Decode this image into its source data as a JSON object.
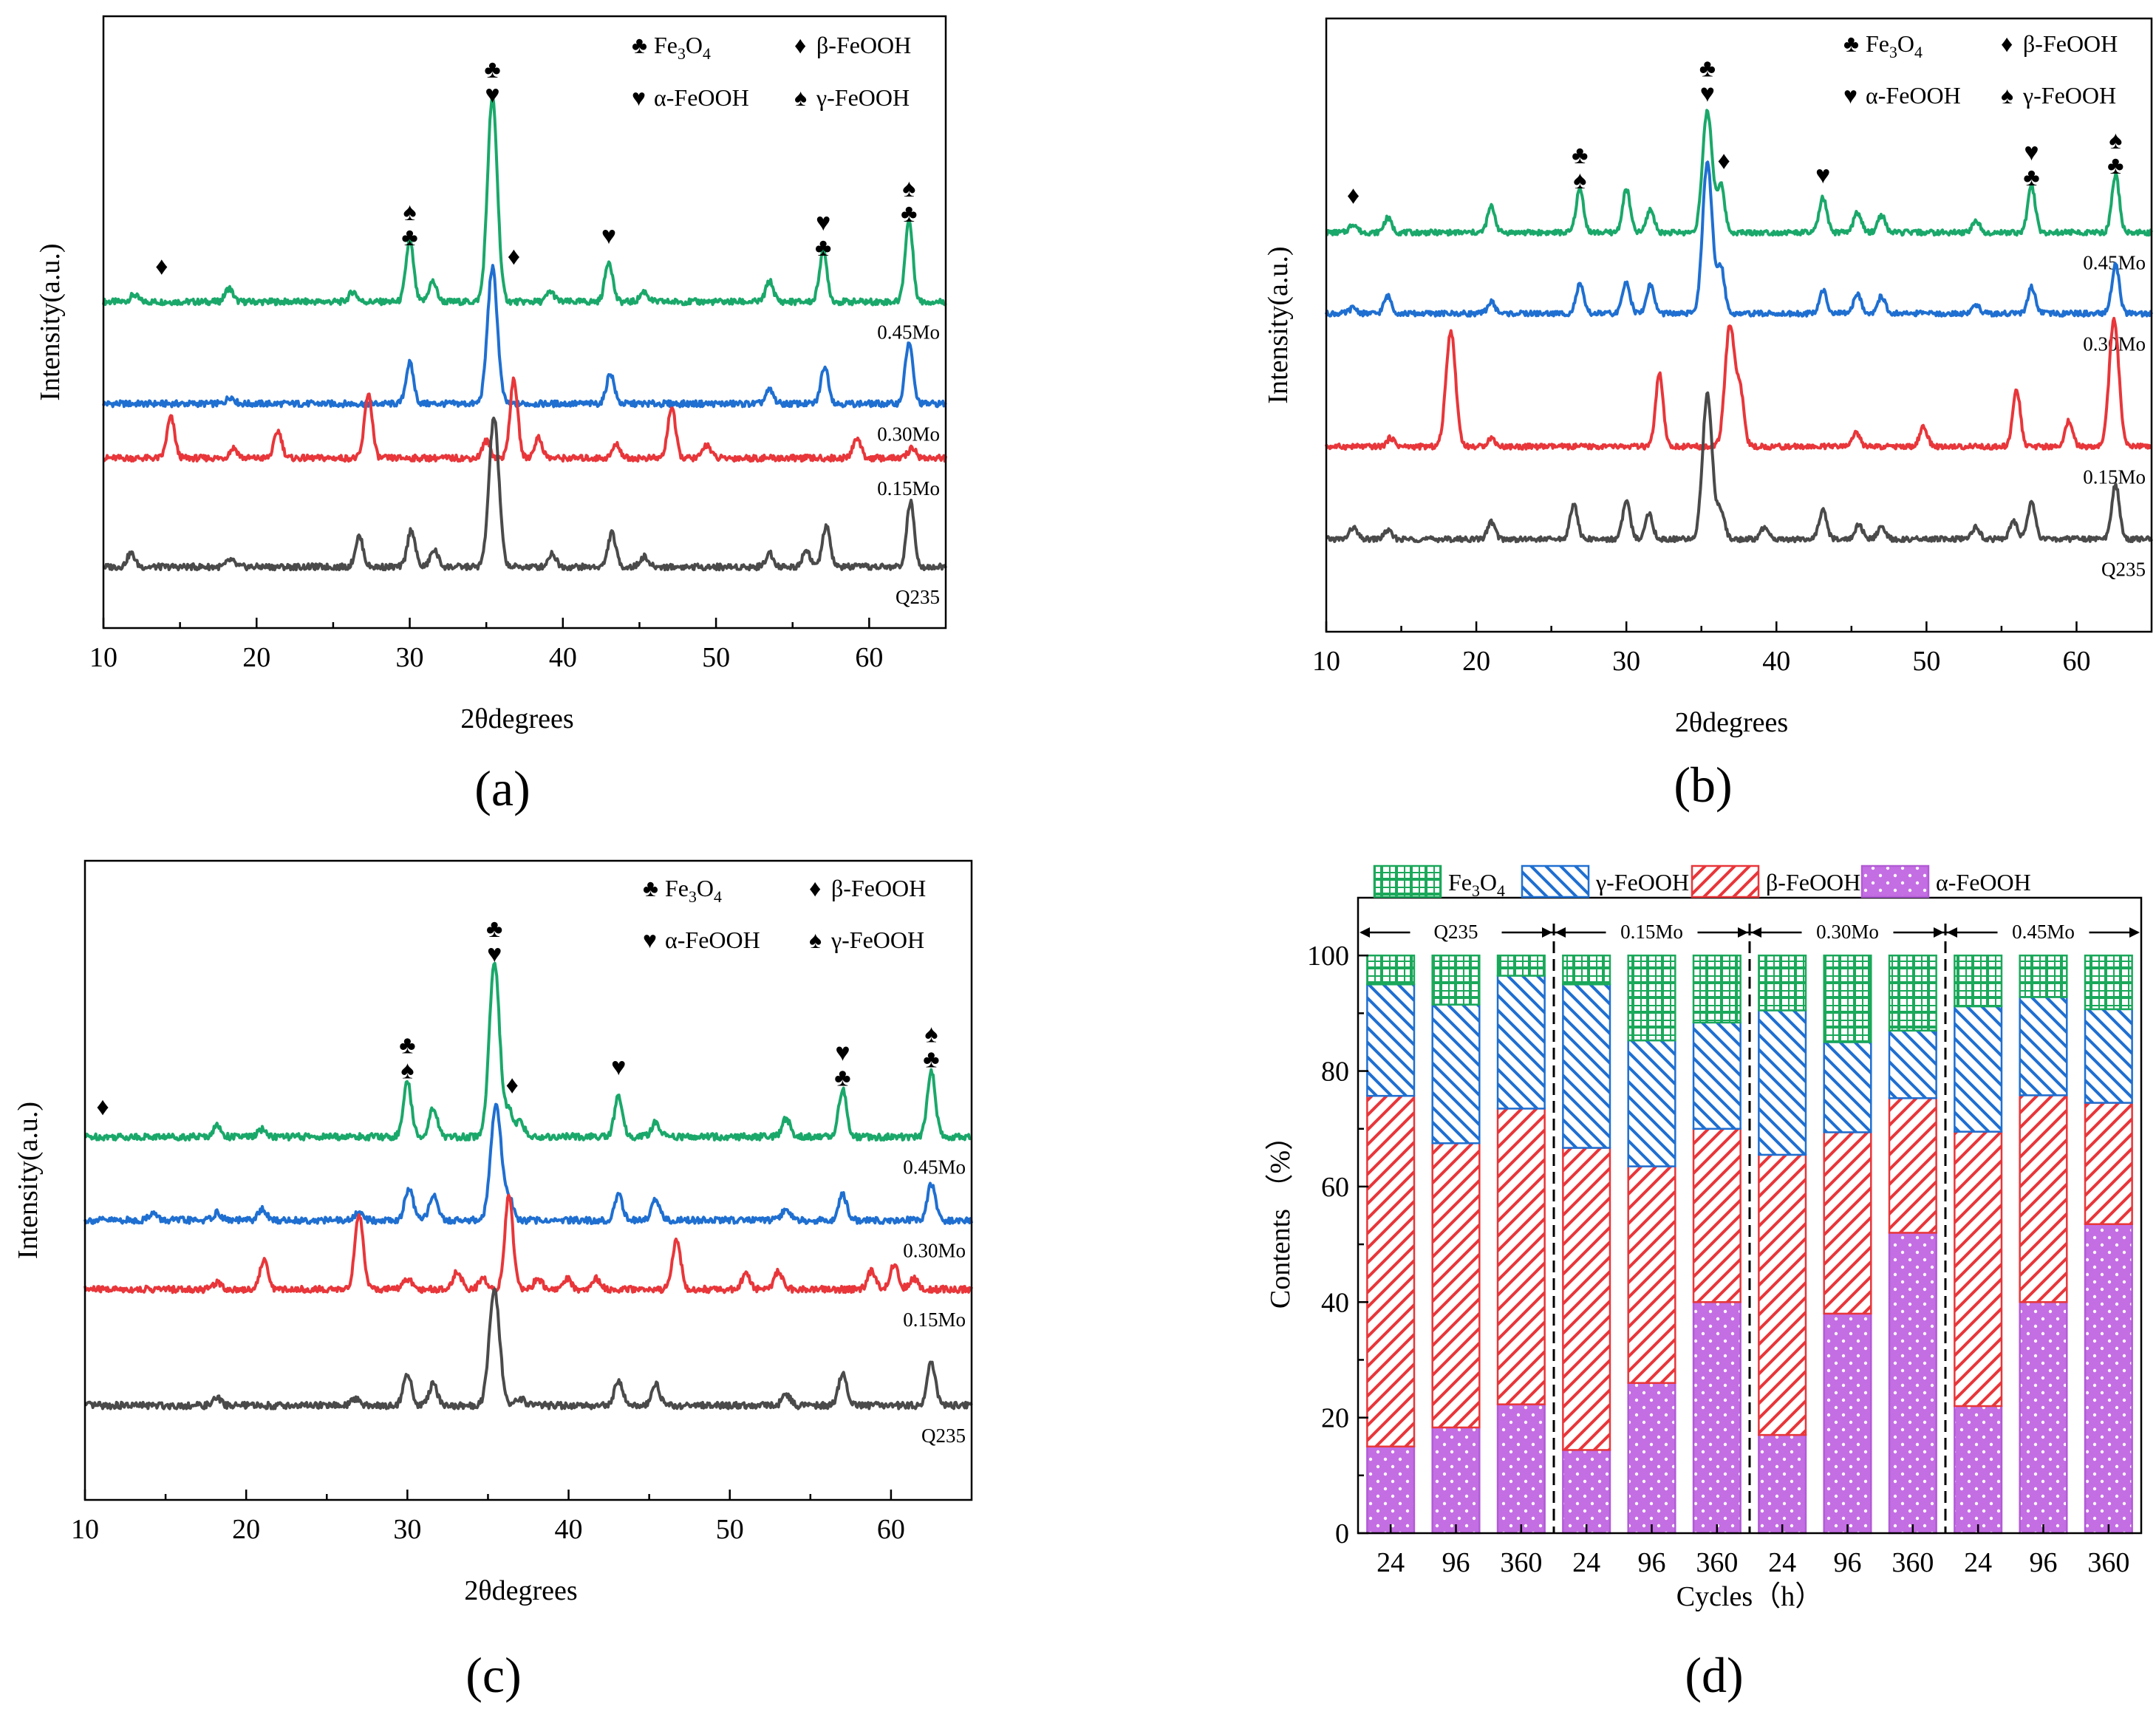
{
  "figure": {
    "panel_labels": [
      "(a)",
      "(b)",
      "(c)",
      "(d)"
    ]
  },
  "legend": {
    "symbols": {
      "Fe3O4": "♣",
      "beta-FeOOH": "♦",
      "alpha-FeOOH": "♥",
      "gamma-FeOOH": "♠"
    },
    "xrd_entries": [
      {
        "sym": "♣",
        "label": "Fe3O4"
      },
      {
        "sym": "♦",
        "label": "β-FeOOH"
      },
      {
        "sym": "♥",
        "label": "α-FeOOH"
      },
      {
        "sym": "♠",
        "label": "γ-FeOOH"
      }
    ],
    "bar_entries": [
      {
        "label": "Fe3O4",
        "color": "#1aa85a"
      },
      {
        "label": "γ-FeOOH",
        "color": "#1f6fd1"
      },
      {
        "label": "β-FeOOH",
        "color": "#e8363a"
      },
      {
        "label": "α-FeOOH",
        "color": "#b25bd6"
      }
    ]
  },
  "chart_data": [
    {
      "type": "line",
      "panel": "(a)",
      "xlabel": "2θdegrees",
      "ylabel": "Intensity(a.u.)",
      "xlim": [
        10,
        65
      ],
      "xticks": [
        10,
        20,
        30,
        40,
        50,
        60
      ],
      "series": [
        {
          "name": "0.45Mo",
          "color": "#1aa86a",
          "baseline": 3.9,
          "peaks": [
            [
              12,
              0.1
            ],
            [
              18.2,
              0.2
            ],
            [
              26.3,
              0.15
            ],
            [
              30,
              0.9
            ],
            [
              31.5,
              0.3
            ],
            [
              35.4,
              3.0
            ],
            [
              39.2,
              0.15
            ],
            [
              43,
              0.6
            ],
            [
              45.3,
              0.15
            ],
            [
              53.5,
              0.3
            ],
            [
              57,
              0.75
            ],
            [
              62.6,
              1.2
            ]
          ]
        },
        {
          "name": "0.30Mo",
          "color": "#1f6fd1",
          "baseline": 2.4,
          "peaks": [
            [
              18.3,
              0.1
            ],
            [
              30,
              0.6
            ],
            [
              35.4,
              2.0
            ],
            [
              43.1,
              0.45
            ],
            [
              53.5,
              0.2
            ],
            [
              57.1,
              0.55
            ],
            [
              62.6,
              0.9
            ]
          ]
        },
        {
          "name": "0.15Mo",
          "color": "#e8363a",
          "baseline": 1.6,
          "peaks": [
            [
              14.4,
              0.6
            ],
            [
              18.5,
              0.15
            ],
            [
              21.4,
              0.4
            ],
            [
              27.3,
              0.95
            ],
            [
              35,
              0.25
            ],
            [
              36.8,
              1.15
            ],
            [
              38.4,
              0.3
            ],
            [
              43.5,
              0.2
            ],
            [
              47.1,
              0.75
            ],
            [
              49.4,
              0.2
            ],
            [
              59.2,
              0.3
            ],
            [
              62.8,
              0.15
            ]
          ]
        },
        {
          "name": "Q235",
          "color": "#4a4a4a",
          "baseline": 0.0,
          "peaks": [
            [
              11.8,
              0.2
            ],
            [
              18.3,
              0.1
            ],
            [
              26.7,
              0.45
            ],
            [
              30.1,
              0.55
            ],
            [
              31.6,
              0.25
            ],
            [
              35.5,
              2.2
            ],
            [
              39.3,
              0.2
            ],
            [
              43.2,
              0.5
            ],
            [
              45.3,
              0.15
            ],
            [
              53.5,
              0.2
            ],
            [
              55.9,
              0.25
            ],
            [
              57.2,
              0.6
            ],
            [
              62.7,
              0.95
            ]
          ]
        }
      ],
      "annotations": [
        {
          "x": 13.8,
          "y": 4.3,
          "label": "♦"
        },
        {
          "x": 30,
          "y": 5.1,
          "label": "♠♣"
        },
        {
          "x": 35.4,
          "y": 7.2,
          "label": "♣♥"
        },
        {
          "x": 36.8,
          "y": 4.45,
          "label": "♦"
        },
        {
          "x": 43,
          "y": 4.75,
          "label": "♥"
        },
        {
          "x": 57,
          "y": 4.95,
          "label": "♥♣"
        },
        {
          "x": 62.6,
          "y": 5.45,
          "label": "♠♣"
        }
      ]
    },
    {
      "type": "line",
      "panel": "(b)",
      "xlabel": "2θdegrees",
      "ylabel": "Intensity(a.u.)",
      "xlim": [
        10,
        65
      ],
      "xticks": [
        10,
        20,
        30,
        40,
        50,
        60
      ],
      "series": [
        {
          "name": "0.45Mo",
          "color": "#1aa86a",
          "baseline": 5.3,
          "peaks": [
            [
              11.8,
              0.15
            ],
            [
              14.1,
              0.25
            ],
            [
              21,
              0.45
            ],
            [
              26.9,
              0.75
            ],
            [
              30,
              0.75
            ],
            [
              31.6,
              0.4
            ],
            [
              35.4,
              2.1
            ],
            [
              36.3,
              0.8
            ],
            [
              43.1,
              0.6
            ],
            [
              45.4,
              0.35
            ],
            [
              47,
              0.3
            ],
            [
              53.3,
              0.2
            ],
            [
              57,
              0.8
            ],
            [
              62.6,
              1.0
            ]
          ]
        },
        {
          "name": "0.30Mo",
          "color": "#1f6fd1",
          "baseline": 3.9,
          "peaks": [
            [
              11.8,
              0.1
            ],
            [
              14.1,
              0.3
            ],
            [
              21,
              0.2
            ],
            [
              26.9,
              0.5
            ],
            [
              30,
              0.55
            ],
            [
              31.6,
              0.5
            ],
            [
              35.4,
              2.6
            ],
            [
              36.3,
              0.8
            ],
            [
              43.1,
              0.4
            ],
            [
              45.4,
              0.35
            ],
            [
              47,
              0.3
            ],
            [
              53.3,
              0.15
            ],
            [
              57,
              0.45
            ],
            [
              62.6,
              0.85
            ]
          ]
        },
        {
          "name": "0.15Mo",
          "color": "#e8363a",
          "baseline": 1.6,
          "peaks": [
            [
              14.3,
              0.15
            ],
            [
              18.3,
              2.0
            ],
            [
              21,
              0.15
            ],
            [
              32.2,
              1.25
            ],
            [
              36.9,
              2.1
            ],
            [
              37.6,
              0.9
            ],
            [
              45.3,
              0.25
            ],
            [
              49.8,
              0.35
            ],
            [
              56,
              1.0
            ],
            [
              59.5,
              0.45
            ],
            [
              62.5,
              2.2
            ]
          ]
        },
        {
          "name": "Q235",
          "color": "#4a4a4a",
          "baseline": 0.0,
          "peaks": [
            [
              11.8,
              0.2
            ],
            [
              14.1,
              0.15
            ],
            [
              21,
              0.3
            ],
            [
              26.5,
              0.6
            ],
            [
              30,
              0.65
            ],
            [
              31.5,
              0.45
            ],
            [
              35.4,
              2.5
            ],
            [
              36.3,
              0.5
            ],
            [
              39.2,
              0.2
            ],
            [
              43.1,
              0.5
            ],
            [
              45.5,
              0.25
            ],
            [
              47,
              0.2
            ],
            [
              53.3,
              0.2
            ],
            [
              55.8,
              0.3
            ],
            [
              57,
              0.65
            ],
            [
              62.6,
              0.95
            ]
          ]
        }
      ],
      "annotations": [
        {
          "x": 11.8,
          "y": 5.8,
          "label": "♦"
        },
        {
          "x": 26.9,
          "y": 6.5,
          "label": "♣♠"
        },
        {
          "x": 35.4,
          "y": 8.0,
          "label": "♣♥"
        },
        {
          "x": 36.5,
          "y": 6.4,
          "label": "♦"
        },
        {
          "x": 43.1,
          "y": 6.15,
          "label": "♥"
        },
        {
          "x": 57,
          "y": 6.55,
          "label": "♥♣"
        },
        {
          "x": 62.6,
          "y": 6.75,
          "label": "♠♣"
        }
      ]
    },
    {
      "type": "line",
      "panel": "(c)",
      "xlabel": "2θdegrees",
      "ylabel": "Intensity(a.u.)",
      "xlim": [
        10,
        65
      ],
      "xticks": [
        10,
        20,
        30,
        40,
        50,
        60
      ],
      "series": [
        {
          "name": "0.45Mo",
          "color": "#1aa86a",
          "baseline": 3.7,
          "peaks": [
            [
              18.2,
              0.15
            ],
            [
              21,
              0.1
            ],
            [
              30,
              0.75
            ],
            [
              31.6,
              0.4
            ],
            [
              35.4,
              2.4
            ],
            [
              36.3,
              0.35
            ],
            [
              37,
              0.2
            ],
            [
              43.1,
              0.55
            ],
            [
              45.4,
              0.2
            ],
            [
              53.5,
              0.25
            ],
            [
              57,
              0.65
            ],
            [
              62.5,
              0.9
            ]
          ]
        },
        {
          "name": "0.30Mo",
          "color": "#1f6fd1",
          "baseline": 2.55,
          "peaks": [
            [
              14.2,
              0.1
            ],
            [
              18.2,
              0.1
            ],
            [
              21,
              0.15
            ],
            [
              27,
              0.1
            ],
            [
              30.1,
              0.45
            ],
            [
              31.6,
              0.35
            ],
            [
              35.5,
              1.6
            ],
            [
              36.3,
              0.3
            ],
            [
              43.1,
              0.35
            ],
            [
              45.4,
              0.3
            ],
            [
              53.5,
              0.15
            ],
            [
              57,
              0.35
            ],
            [
              62.5,
              0.5
            ]
          ]
        },
        {
          "name": "0.15Mo",
          "color": "#e8363a",
          "baseline": 1.6,
          "peaks": [
            [
              18.2,
              0.1
            ],
            [
              21.1,
              0.4
            ],
            [
              27,
              1.05
            ],
            [
              30,
              0.15
            ],
            [
              33.1,
              0.25
            ],
            [
              34.7,
              0.15
            ],
            [
              36.3,
              1.3
            ],
            [
              38.1,
              0.15
            ],
            [
              39.9,
              0.15
            ],
            [
              41.7,
              0.15
            ],
            [
              46.7,
              0.7
            ],
            [
              51,
              0.2
            ],
            [
              53,
              0.25
            ],
            [
              58.8,
              0.25
            ],
            [
              60.2,
              0.35
            ],
            [
              61.4,
              0.15
            ]
          ]
        },
        {
          "name": "Q235",
          "color": "#4a4a4a",
          "baseline": 0.0,
          "peaks": [
            [
              18.2,
              0.1
            ],
            [
              26.8,
              0.1
            ],
            [
              30,
              0.45
            ],
            [
              31.6,
              0.3
            ],
            [
              35.4,
              1.6
            ],
            [
              37,
              0.1
            ],
            [
              43.1,
              0.35
            ],
            [
              45.4,
              0.3
            ],
            [
              53.5,
              0.15
            ],
            [
              57,
              0.45
            ],
            [
              62.5,
              0.6
            ]
          ]
        }
      ],
      "annotations": [
        {
          "x": 11.1,
          "y": 4.0,
          "label": "♦"
        },
        {
          "x": 30,
          "y": 4.85,
          "label": "♣♠"
        },
        {
          "x": 35.4,
          "y": 6.45,
          "label": "♣♥"
        },
        {
          "x": 36.5,
          "y": 4.3,
          "label": "♦"
        },
        {
          "x": 43.1,
          "y": 4.55,
          "label": "♥"
        },
        {
          "x": 57,
          "y": 4.75,
          "label": "♥♣"
        },
        {
          "x": 62.5,
          "y": 5.0,
          "label": "♠♣"
        }
      ]
    },
    {
      "type": "bar",
      "stacked": true,
      "panel": "(d)",
      "xlabel": "Cycles（h）",
      "ylabel": "Contents （%）",
      "ylim": [
        0,
        110
      ],
      "yticks": [
        0,
        20,
        40,
        60,
        80,
        100
      ],
      "categories": [
        "24",
        "96",
        "360",
        "24",
        "96",
        "360",
        "24",
        "96",
        "360",
        "24",
        "96",
        "360"
      ],
      "groups": [
        "Q235",
        "0.15Mo",
        "0.30Mo",
        "0.45Mo"
      ],
      "series": [
        {
          "name": "α-FeOOH",
          "color": "#b25bd6",
          "values": [
            15,
            18.3,
            22.3,
            14.4,
            26,
            40,
            17,
            38,
            52,
            22,
            40,
            53.5
          ]
        },
        {
          "name": "β-FeOOH",
          "color": "#e8363a",
          "values": [
            60.7,
            49.2,
            51.2,
            52.3,
            37.5,
            30,
            48.5,
            31.4,
            23.3,
            47.5,
            35.8,
            21
          ]
        },
        {
          "name": "γ-FeOOH",
          "color": "#1f6fd1",
          "values": [
            19.3,
            24,
            23,
            28.3,
            21.8,
            18.4,
            25,
            15.6,
            11.7,
            21.7,
            17,
            16.2
          ]
        },
        {
          "name": "Fe3O4",
          "color": "#1aa85a",
          "values": [
            5,
            8.5,
            3.5,
            5,
            14.7,
            11.6,
            9.5,
            15,
            13,
            8.8,
            7.2,
            9.3
          ]
        }
      ]
    }
  ]
}
